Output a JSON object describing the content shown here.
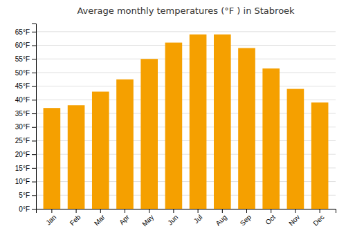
{
  "chart_data": {
    "type": "bar",
    "title": "Average monthly temperatures (°F ) in Stabroek",
    "categories": [
      "Jan",
      "Feb",
      "Mar",
      "Apr",
      "May",
      "Jun",
      "Jul",
      "Aug",
      "Sep",
      "Oct",
      "Nov",
      "Dec"
    ],
    "values": [
      37,
      38,
      43,
      47.5,
      55,
      61,
      64,
      64,
      59,
      51.5,
      44,
      39
    ],
    "color": "#F5A000",
    "ylim": [
      0,
      68
    ],
    "yticks": [
      {
        "value": 0,
        "label": "0°F"
      },
      {
        "value": 5,
        "label": "5°F"
      },
      {
        "value": 10,
        "label": "10°F"
      },
      {
        "value": 15,
        "label": "15°F"
      },
      {
        "value": 20,
        "label": "20°F"
      },
      {
        "value": 25,
        "label": "25°F"
      },
      {
        "value": 30,
        "label": "30°F"
      },
      {
        "value": 35,
        "label": "35°F"
      },
      {
        "value": 40,
        "label": "40°F"
      },
      {
        "value": 45,
        "label": "45°F"
      },
      {
        "value": 50,
        "label": "50°F"
      },
      {
        "value": 55,
        "label": "55°F"
      },
      {
        "value": 60,
        "label": "60°F"
      },
      {
        "value": 65,
        "label": "65°F"
      }
    ],
    "grid": true
  }
}
